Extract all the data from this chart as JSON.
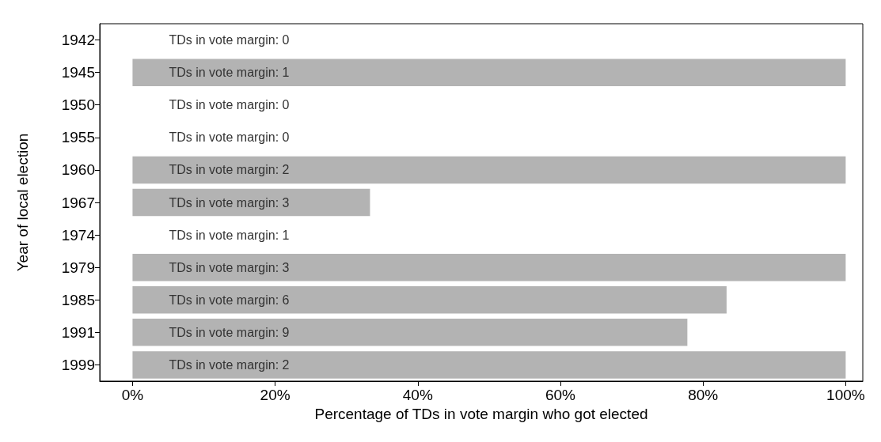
{
  "chart_data": {
    "type": "bar",
    "orientation": "horizontal",
    "xlabel": "Percentage of TDs in vote margin who got elected",
    "ylabel": "Year of local election",
    "categories": [
      "1942",
      "1945",
      "1950",
      "1955",
      "1960",
      "1967",
      "1974",
      "1979",
      "1985",
      "1991",
      "1999"
    ],
    "values": [
      0,
      100,
      0,
      0,
      100,
      33.3,
      0,
      100,
      83.3,
      77.8,
      100
    ],
    "value_labels": [
      "TDs in vote margin: 0",
      "TDs in vote margin: 1",
      "TDs in vote margin: 0",
      "TDs in vote margin: 0",
      "TDs in vote margin: 2",
      "TDs in vote margin: 3",
      "TDs in vote margin: 1",
      "TDs in vote margin: 3",
      "TDs in vote margin: 6",
      "TDs in vote margin: 9",
      "TDs in vote margin: 2"
    ],
    "color": "#b3b3b3",
    "xlim": [
      -4.6,
      102.4
    ],
    "xticks": [
      {
        "value": 0,
        "label": "0%"
      },
      {
        "value": 20,
        "label": "20%"
      },
      {
        "value": 40,
        "label": "40%"
      },
      {
        "value": 60,
        "label": "60%"
      },
      {
        "value": 80,
        "label": "80%"
      },
      {
        "value": 100,
        "label": "100%"
      }
    ],
    "grid": false
  }
}
